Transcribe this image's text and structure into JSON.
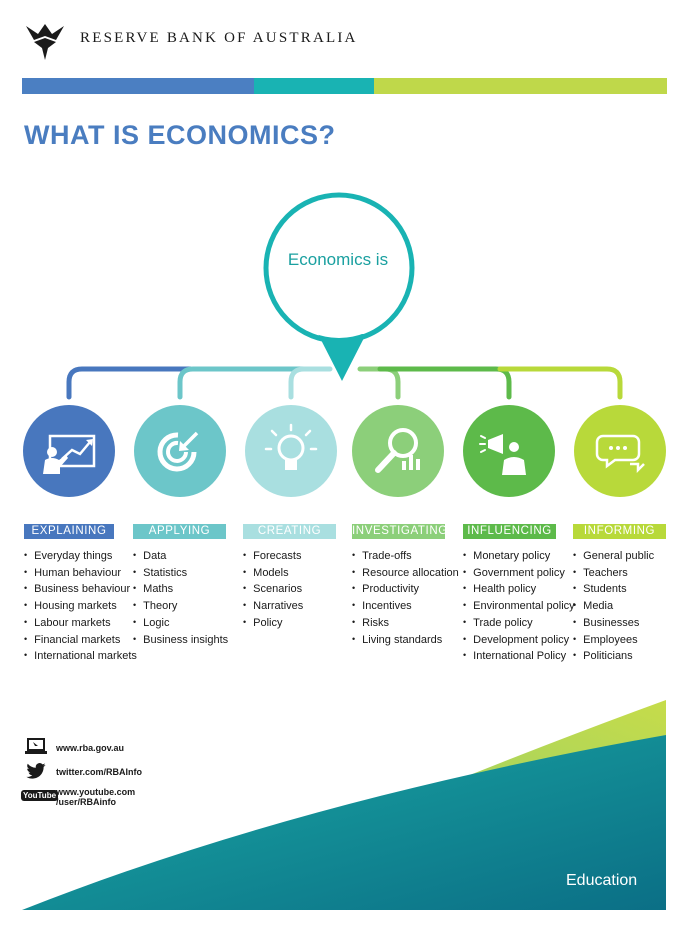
{
  "header": {
    "bank_name": "RESERVE BANK OF AUSTRALIA",
    "stripe_colors": [
      "#4b7fc2",
      "#19b3b3",
      "#bfd84a"
    ]
  },
  "title": "WHAT IS ECONOMICS?",
  "center": {
    "text": "Economics is",
    "color": "#19b3b3"
  },
  "columns": [
    {
      "label": "EXPLAINING",
      "color": "#4877be",
      "icon": "presentation-chart-icon",
      "items": [
        "Everyday things",
        "Human behaviour",
        "Business behaviour",
        "Housing markets",
        "Labour markets",
        "Financial markets",
        "International markets"
      ]
    },
    {
      "label": "APPLYING",
      "color": "#6cc6c9",
      "icon": "target-arrow-icon",
      "items": [
        "Data",
        "Statistics",
        "Maths",
        "Theory",
        "Logic",
        "Business insights"
      ]
    },
    {
      "label": "CREATING",
      "color": "#a9dfe0",
      "icon": "lightbulb-icon",
      "items": [
        "Forecasts",
        "Models",
        "Scenarios",
        "Narratives",
        "Policy"
      ]
    },
    {
      "label": "INVESTIGATING",
      "color": "#8ccf7a",
      "icon": "magnifier-chart-icon",
      "items": [
        "Trade-offs",
        "Resource allocation",
        "Productivity",
        "Incentives",
        "Risks",
        "Living standards"
      ]
    },
    {
      "label": "INFLUENCING",
      "color": "#5dba4a",
      "icon": "megaphone-icon",
      "items": [
        "Monetary policy",
        "Government policy",
        "Health policy",
        "Environmental policy",
        "Trade policy",
        "Development policy",
        "International Policy"
      ]
    },
    {
      "label": "INFORMING",
      "color": "#b8d93a",
      "icon": "speech-bubbles-icon",
      "items": [
        "General public",
        "Teachers",
        "Students",
        "Media",
        "Businesses",
        "Employees",
        "Politicians"
      ]
    }
  ],
  "contacts": {
    "web": "www.rba.gov.au",
    "twitter": "twitter.com/RBAInfo",
    "youtube_line1": "www.youtube.com",
    "youtube_line2": "/user/RBAinfo",
    "youtube_logo_text": "YouTube"
  },
  "footer": {
    "label": "Education"
  }
}
